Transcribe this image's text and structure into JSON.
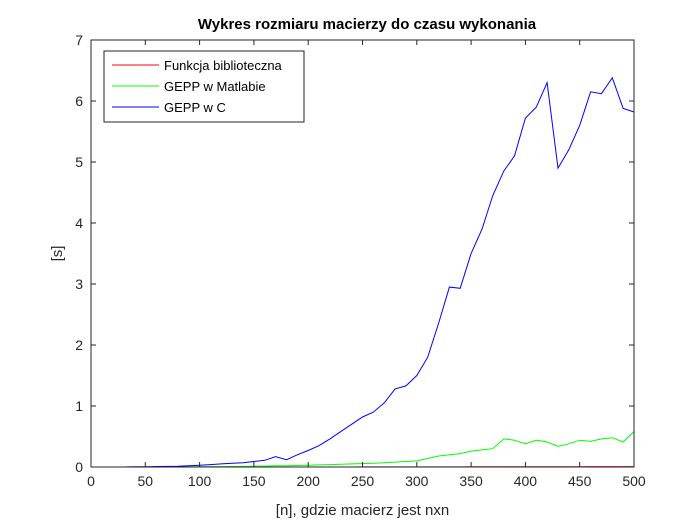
{
  "chart_data": {
    "type": "line",
    "title": "Wykres rozmiaru macierzy do czasu wykonania",
    "xlabel": "[n], gdzie macierz jest nxn",
    "ylabel": "[s]",
    "xlim": [
      0,
      500
    ],
    "ylim": [
      0,
      7
    ],
    "xticks": [
      0,
      50,
      100,
      150,
      200,
      250,
      300,
      350,
      400,
      450,
      500
    ],
    "yticks": [
      0,
      1,
      2,
      3,
      4,
      5,
      6,
      7
    ],
    "grid": false,
    "legend_position": "top-left",
    "x": [
      10,
      20,
      30,
      40,
      50,
      60,
      70,
      80,
      90,
      100,
      110,
      120,
      130,
      140,
      150,
      160,
      170,
      180,
      190,
      200,
      210,
      220,
      230,
      240,
      250,
      260,
      270,
      280,
      290,
      300,
      310,
      320,
      330,
      340,
      350,
      360,
      370,
      380,
      390,
      400,
      410,
      420,
      430,
      440,
      450,
      460,
      470,
      480,
      490,
      500
    ],
    "series": [
      {
        "name": "Funkcja biblioteczna",
        "color": "#ff0000",
        "values": [
          0,
          0,
          0,
          0,
          0,
          0,
          0,
          0,
          0,
          0,
          0,
          0,
          0,
          0,
          0,
          0,
          0,
          0,
          0,
          0,
          0,
          0,
          0,
          0,
          0.001,
          0.001,
          0.001,
          0.001,
          0.001,
          0.001,
          0.002,
          0.002,
          0.002,
          0.002,
          0.003,
          0.003,
          0.003,
          0.003,
          0.004,
          0.004,
          0.004,
          0.004,
          0.005,
          0.005,
          0.005,
          0.006,
          0.006,
          0.006,
          0.007,
          0.007
        ]
      },
      {
        "name": "GEPP w Matlabie",
        "color": "#00ff00",
        "values": [
          0,
          0,
          0,
          0,
          0,
          0,
          0.002,
          0.003,
          0.004,
          0.005,
          0.006,
          0.007,
          0.008,
          0.01,
          0.012,
          0.015,
          0.02,
          0.02,
          0.025,
          0.03,
          0.035,
          0.04,
          0.045,
          0.05,
          0.055,
          0.06,
          0.07,
          0.08,
          0.09,
          0.1,
          0.14,
          0.18,
          0.2,
          0.22,
          0.26,
          0.28,
          0.3,
          0.46,
          0.44,
          0.38,
          0.44,
          0.41,
          0.34,
          0.38,
          0.44,
          0.42,
          0.46,
          0.48,
          0.41,
          0.58
        ]
      },
      {
        "name": "GEPP w C",
        "color": "#0000ff",
        "values": [
          0,
          0,
          0,
          0.003,
          0.005,
          0.008,
          0.01,
          0.012,
          0.02,
          0.03,
          0.04,
          0.05,
          0.06,
          0.07,
          0.09,
          0.11,
          0.17,
          0.12,
          0.2,
          0.27,
          0.35,
          0.46,
          0.58,
          0.7,
          0.82,
          0.9,
          1.05,
          1.28,
          1.33,
          1.5,
          1.8,
          2.35,
          2.95,
          2.93,
          3.5,
          3.9,
          4.45,
          4.85,
          5.1,
          5.72,
          5.9,
          6.3,
          4.9,
          5.2,
          5.6,
          6.15,
          6.12,
          6.38,
          5.88,
          5.82
        ]
      }
    ]
  }
}
